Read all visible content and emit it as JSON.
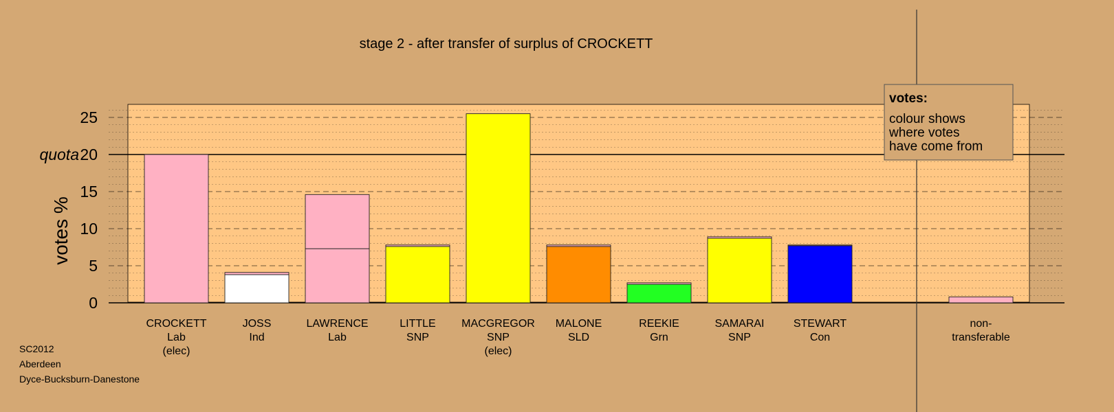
{
  "chart_data": {
    "type": "bar",
    "title": "stage 2 - after transfer of surplus of CROCKETT",
    "ylabel": "votes %",
    "ylim": [
      0,
      26.8
    ],
    "yticks": [
      0,
      5,
      10,
      15,
      20,
      25
    ],
    "quota": 20,
    "quota_label": "quota",
    "grid": true,
    "colors": {
      "background": "#d4a874",
      "plot_bg": "#ffc784",
      "Lab": "#ffb1c3",
      "Ind": "#ffffff",
      "SNP": "#ffff00",
      "SLD": "#ff8c00",
      "Grn": "#22ff22",
      "Con": "#0000ff"
    },
    "categories": [
      {
        "name": "CROCKETT",
        "party": "Lab",
        "status": "(elec)",
        "segments": [
          {
            "value": 20.0,
            "source": "Lab"
          }
        ]
      },
      {
        "name": "JOSS",
        "party": "Ind",
        "status": "",
        "segments": [
          {
            "value": 3.8,
            "source": "Ind"
          },
          {
            "value": 0.3,
            "source": "Lab"
          }
        ]
      },
      {
        "name": "LAWRENCE",
        "party": "Lab",
        "status": "",
        "segments": [
          {
            "value": 7.3,
            "source": "Lab"
          },
          {
            "value": 7.3,
            "source": "Lab"
          }
        ]
      },
      {
        "name": "LITTLE",
        "party": "SNP",
        "status": "",
        "segments": [
          {
            "value": 7.6,
            "source": "SNP"
          },
          {
            "value": 0.2,
            "source": "Lab"
          }
        ]
      },
      {
        "name": "MACGREGOR",
        "party": "SNP",
        "status": "(elec)",
        "segments": [
          {
            "value": 25.5,
            "source": "SNP"
          }
        ]
      },
      {
        "name": "MALONE",
        "party": "SLD",
        "status": "",
        "segments": [
          {
            "value": 7.6,
            "source": "SLD"
          },
          {
            "value": 0.2,
            "source": "Lab"
          }
        ]
      },
      {
        "name": "REEKIE",
        "party": "Grn",
        "status": "",
        "segments": [
          {
            "value": 2.5,
            "source": "Grn"
          },
          {
            "value": 0.2,
            "source": "Lab"
          }
        ]
      },
      {
        "name": "SAMARAI",
        "party": "SNP",
        "status": "",
        "segments": [
          {
            "value": 8.7,
            "source": "SNP"
          },
          {
            "value": 0.2,
            "source": "Lab"
          }
        ]
      },
      {
        "name": "STEWART",
        "party": "Con",
        "status": "",
        "segments": [
          {
            "value": 7.7,
            "source": "Con"
          },
          {
            "value": 0.1,
            "source": "Lab"
          }
        ]
      }
    ],
    "nontransferable": {
      "label_line1": "non-",
      "label_line2": "transferable",
      "segments": [
        {
          "value": 0.8,
          "source": "Lab"
        }
      ]
    },
    "legend": {
      "title": "votes:",
      "lines": [
        "colour shows",
        "where votes",
        "have come from"
      ],
      "position": "top-right"
    }
  },
  "footer": {
    "line1": "SC2012",
    "line2": "Aberdeen",
    "line3": "Dyce-Bucksburn-Danestone"
  }
}
